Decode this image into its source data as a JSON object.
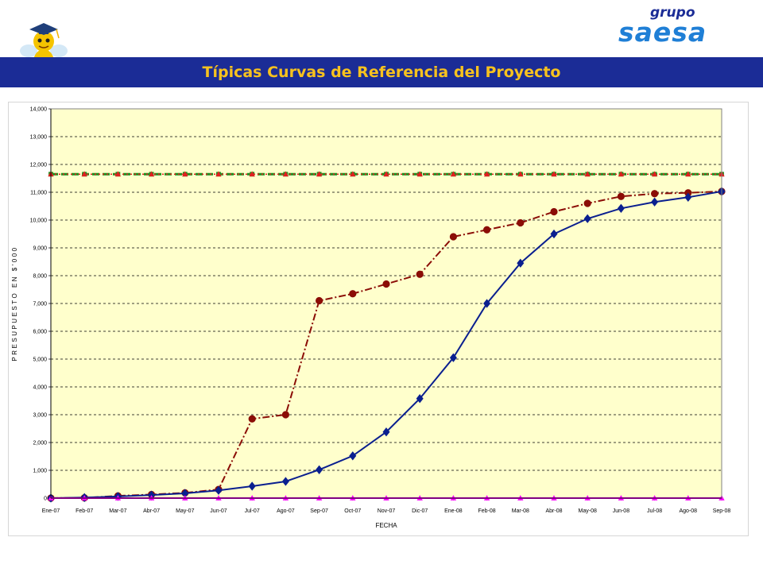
{
  "header": {
    "title": "Típicas Curvas de Referencia del Proyecto",
    "logo_top": "grupo",
    "logo_main": "saesa",
    "mascot_icon": "graduate-bee-icon"
  },
  "colors": {
    "banner": "#1b2c96",
    "title": "#f7c21e",
    "plot_bg": "#ffffcc",
    "series_blue": "#0a1f8f",
    "series_darkred": "#8b0d06",
    "series_green": "#1f8f1f",
    "series_red": "#e02020",
    "series_magenta": "#ff00ff"
  },
  "chart_data": {
    "type": "line",
    "title": "",
    "xlabel": "FECHA",
    "ylabel": "PRESUPUESTO EN $'000",
    "ylim": [
      0,
      14000
    ],
    "yticks": [
      "0",
      "1,000",
      "2,000",
      "3,000",
      "4,000",
      "5,000",
      "6,000",
      "7,000",
      "8,000",
      "9,000",
      "10,000",
      "11,000",
      "12,000",
      "13,000",
      "14,000"
    ],
    "grid": true,
    "legend": "none",
    "categories": [
      "Ene-07",
      "Feb-07",
      "Mar-07",
      "Abr-07",
      "May-07",
      "Jun-07",
      "Jul-07",
      "Ago-07",
      "Sep-07",
      "Oct-07",
      "Nov-07",
      "Dic-07",
      "Ene-08",
      "Feb-08",
      "Mar-08",
      "Abr-08",
      "May-08",
      "Jun-08",
      "Jul-08",
      "Ago-08",
      "Sep-08"
    ],
    "series": [
      {
        "key": "budget_limit_green",
        "color": "#1f8f1f",
        "style": "dash",
        "marker": "square",
        "values": [
          11650,
          11650,
          11650,
          11650,
          11650,
          11650,
          11650,
          11650,
          11650,
          11650,
          11650,
          11650,
          11650,
          11650,
          11650,
          11650,
          11650,
          11650,
          11650,
          11650,
          11650
        ]
      },
      {
        "key": "budget_limit_red",
        "color": "#e02020",
        "style": "dot",
        "marker": "triangle",
        "values": [
          11650,
          11650,
          11650,
          11650,
          11650,
          11650,
          11650,
          11650,
          11650,
          11650,
          11650,
          11650,
          11650,
          11650,
          11650,
          11650,
          11650,
          11650,
          11650,
          11650,
          11650
        ]
      },
      {
        "key": "commitment_curve",
        "color": "#8b0d06",
        "style": "dashdot",
        "marker": "circle",
        "values": [
          0,
          10,
          80,
          130,
          190,
          310,
          2850,
          3000,
          7100,
          7350,
          7700,
          8050,
          9400,
          9650,
          9900,
          10300,
          10600,
          10850,
          10950,
          10980,
          11030
        ]
      },
      {
        "key": "s_curve",
        "color": "#0a1f8f",
        "style": "solid",
        "marker": "diamond",
        "values": [
          0,
          20,
          60,
          110,
          170,
          280,
          430,
          600,
          1020,
          1520,
          2380,
          3580,
          5050,
          7000,
          8450,
          9500,
          10050,
          10420,
          10650,
          10820,
          11030
        ]
      },
      {
        "key": "zero_line",
        "color": "#ff00ff",
        "style": "solid",
        "marker": "triangle",
        "values": [
          0,
          0,
          0,
          0,
          0,
          0,
          0,
          0,
          0,
          0,
          0,
          0,
          0,
          0,
          0,
          0,
          0,
          0,
          0,
          0,
          0
        ]
      }
    ]
  }
}
